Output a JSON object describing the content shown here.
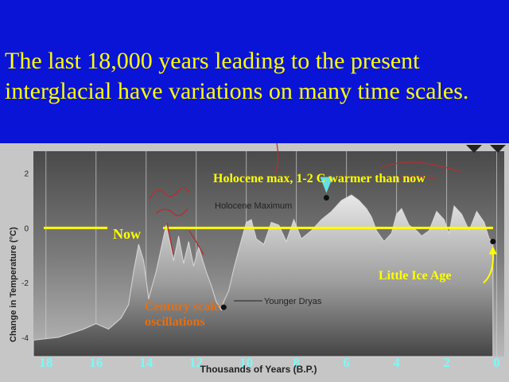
{
  "slide": {
    "title_line1": "The last 18,000 years leading to the present",
    "title_line2": "interglacial have variations on many time scales."
  },
  "annotations": {
    "now": "Now",
    "holocene_max_note": "Holocene max, 1-2 C warmer than now",
    "little_ice_age": "Little Ice Age",
    "century_scale_line1": "Century scale",
    "century_scale_line2": "oscillations"
  },
  "chart_data": {
    "type": "area",
    "xlabel": "Thousands of Years (B.P.)",
    "ylabel": "Change in Temperature (°C)",
    "x_ticks": [
      "18",
      "16",
      "14",
      "12",
      "10",
      "8",
      "6",
      "4",
      "2",
      "0"
    ],
    "y_ticks": [
      "2",
      "0",
      "-2",
      "-4"
    ],
    "xlim": [
      18.5,
      -0.3
    ],
    "ylim": [
      -4.7,
      2.8
    ],
    "inline_labels": [
      "Holocene Maximum",
      "Younger Dryas"
    ],
    "series": [
      {
        "x": [
          18.5,
          17.5,
          16.5,
          16,
          15.5,
          15,
          14.7,
          14.5,
          14.3,
          14.1,
          13.9,
          13.6,
          13.2,
          12.9,
          12.7,
          12.5,
          12.3,
          12.1,
          11.9,
          11.6,
          11.4,
          11.2,
          11.0,
          10.9,
          10.7,
          10.5,
          10.3,
          10.0,
          9.8,
          9.6,
          9.3,
          9.0,
          8.7,
          8.4,
          8.1,
          7.8,
          7.4,
          7.0,
          6.6,
          6.2,
          5.8,
          5.5,
          5.2,
          5.0,
          4.8,
          4.5,
          4.2,
          4.0,
          3.8,
          3.5,
          3.2,
          3.0,
          2.7,
          2.4,
          2.1,
          1.9,
          1.7,
          1.4,
          1.1,
          0.8,
          0.5,
          0.3,
          0.15
        ],
        "y": [
          -4.1,
          -4.0,
          -3.7,
          -3.5,
          -3.7,
          -3.3,
          -2.8,
          -1.6,
          -0.6,
          -1.2,
          -2.6,
          -1.6,
          0.1,
          -1.2,
          -0.3,
          -1.3,
          -0.5,
          -1.4,
          -0.7,
          -1.6,
          -2.1,
          -2.7,
          -3.0,
          -2.7,
          -2.3,
          -1.5,
          -0.8,
          0.2,
          0.3,
          -0.4,
          -0.6,
          0.2,
          0.1,
          -0.5,
          0.3,
          -0.4,
          -0.1,
          0.3,
          0.6,
          1.0,
          1.2,
          1.0,
          0.7,
          0.4,
          -0.1,
          -0.5,
          -0.2,
          0.5,
          0.7,
          0.1,
          -0.1,
          -0.3,
          -0.1,
          0.6,
          0.3,
          -0.2,
          0.8,
          0.5,
          -0.1,
          0.6,
          0.2,
          -0.4,
          -0.5
        ]
      }
    ],
    "markers": [
      {
        "name": "Holocene Maximum",
        "x": 6.8,
        "y": 1.1
      },
      {
        "name": "Younger Dryas",
        "x": 10.9,
        "y": -2.9
      },
      {
        "name": "Little Ice Age",
        "x": 0.15,
        "y": -0.5
      }
    ]
  },
  "colors": {
    "slide_background": "#0a14d6",
    "title_text": "#ffff00",
    "now_line": "#ffff00",
    "century_label": "#e07018",
    "tick_labels": "#7ff7f7",
    "holocene_arrow": "#66e0e0"
  }
}
